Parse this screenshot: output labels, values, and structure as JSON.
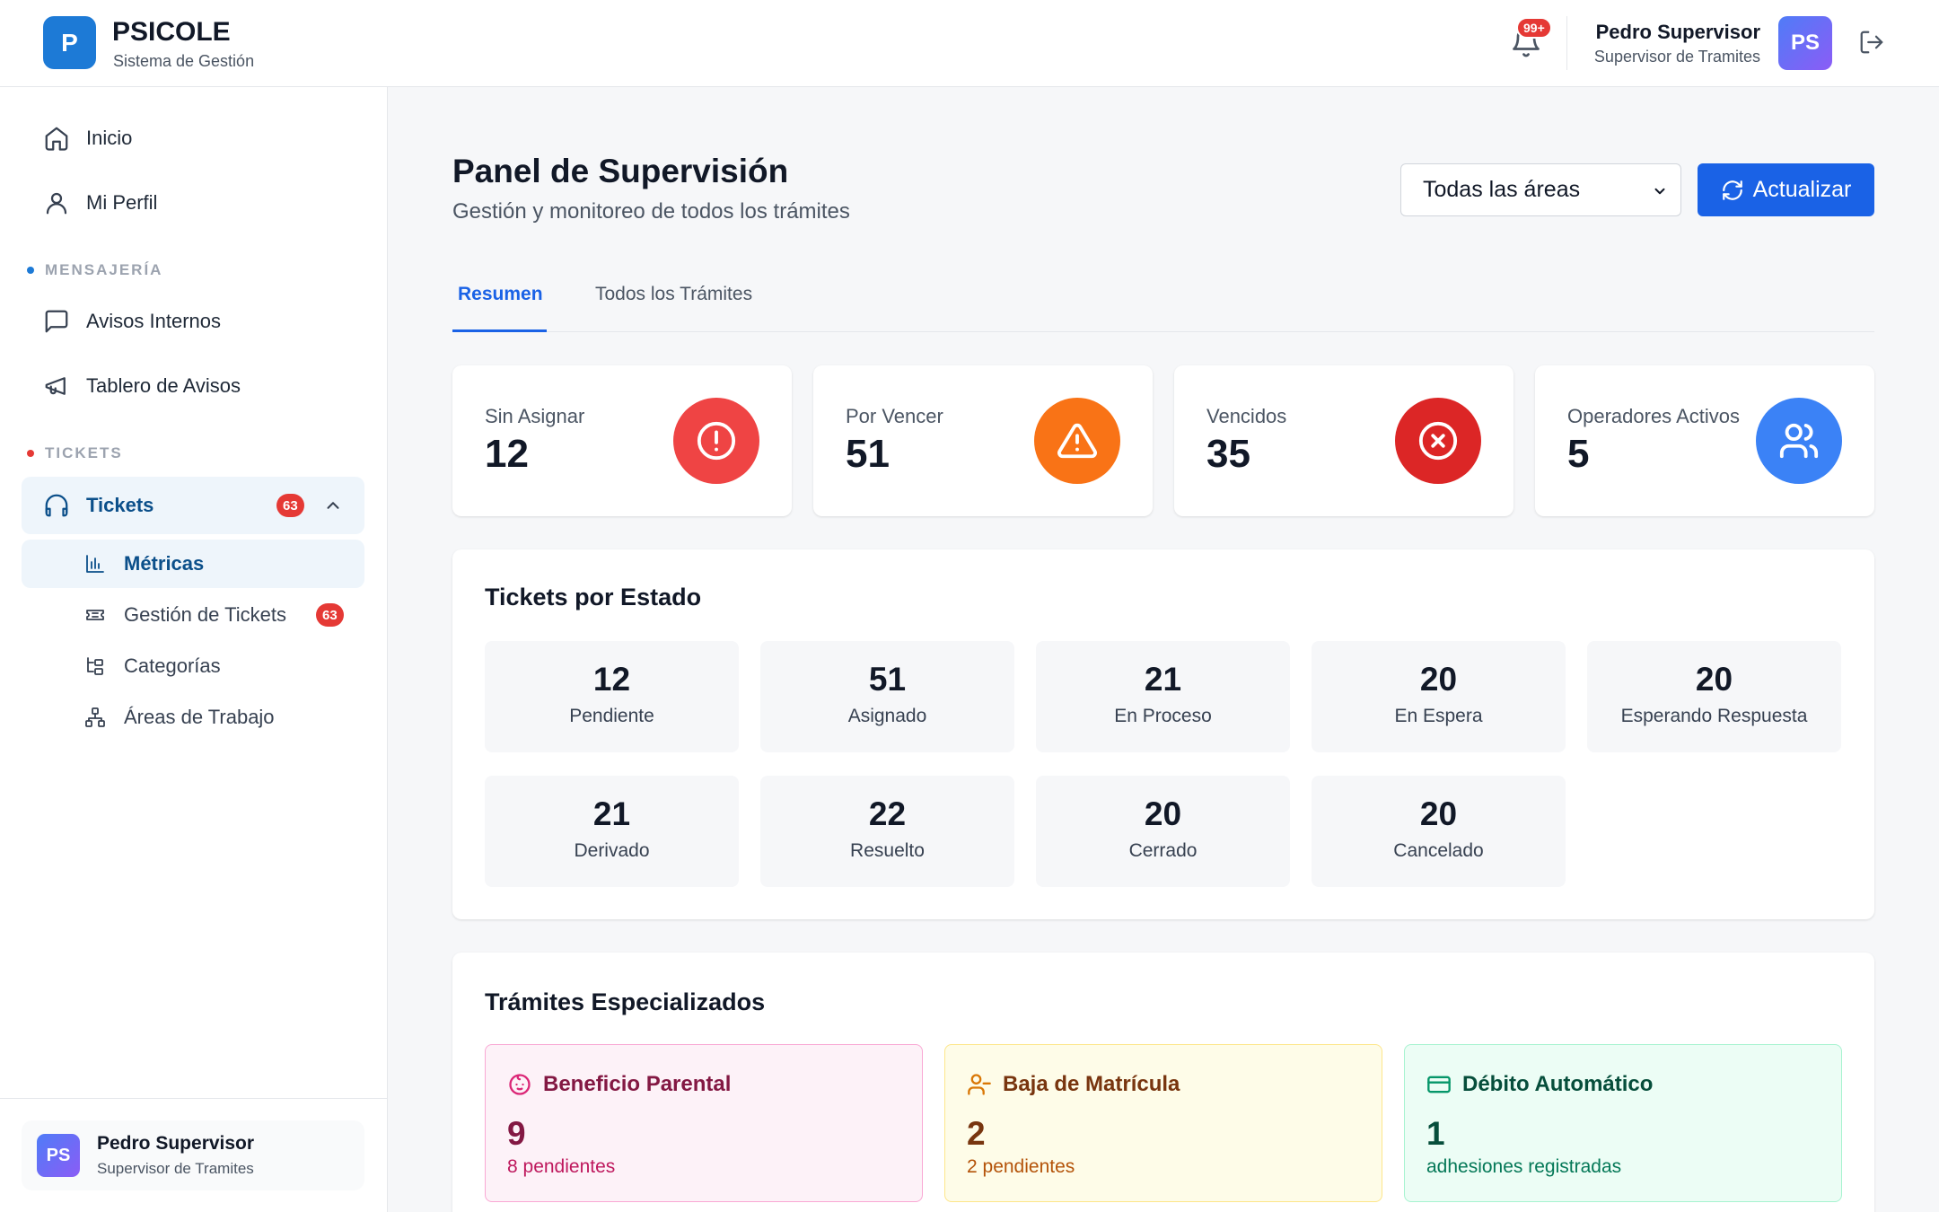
{
  "app": {
    "logo_letter": "P",
    "name": "PSICOLE",
    "subtitle": "Sistema de Gestión"
  },
  "header": {
    "notifications_badge": "99+",
    "user_name": "Pedro Supervisor",
    "user_role": "Supervisor de Tramites",
    "avatar_initials": "PS"
  },
  "sidebar": {
    "inicio": "Inicio",
    "perfil": "Mi Perfil",
    "section_mensajeria": "MENSAJERÍA",
    "avisos_internos": "Avisos Internos",
    "tablero_avisos": "Tablero de Avisos",
    "section_tickets": "TICKETS",
    "tickets": "Tickets",
    "tickets_count": "63",
    "metricas": "Métricas",
    "gestion_tickets": "Gestión de Tickets",
    "gestion_count": "63",
    "categorias": "Categorías",
    "areas_trabajo": "Áreas de Trabajo",
    "footer_name": "Pedro Supervisor",
    "footer_role": "Supervisor de Tramites",
    "footer_initials": "PS"
  },
  "main": {
    "title": "Panel de Supervisión",
    "subtitle": "Gestión y monitoreo de todos los trámites",
    "area_filter": "Todas las áreas",
    "refresh_label": "Actualizar",
    "tabs": [
      {
        "label": "Resumen"
      },
      {
        "label": "Todos los Trámites"
      }
    ],
    "stats": [
      {
        "label": "Sin Asignar",
        "value": "12",
        "color": "#ef4444",
        "icon": "alert-circle-icon"
      },
      {
        "label": "Por Vencer",
        "value": "51",
        "color": "#f97316",
        "icon": "warning-triangle-icon"
      },
      {
        "label": "Vencidos",
        "value": "35",
        "color": "#dc2626",
        "icon": "x-circle-icon"
      },
      {
        "label": "Operadores Activos",
        "value": "5",
        "color": "#3b82f6",
        "icon": "users-icon"
      }
    ],
    "status_title": "Tickets por Estado",
    "statuses": [
      {
        "count": "12",
        "label": "Pendiente"
      },
      {
        "count": "51",
        "label": "Asignado"
      },
      {
        "count": "21",
        "label": "En Proceso"
      },
      {
        "count": "20",
        "label": "En Espera"
      },
      {
        "count": "20",
        "label": "Esperando Respuesta"
      },
      {
        "count": "21",
        "label": "Derivado"
      },
      {
        "count": "22",
        "label": "Resuelto"
      },
      {
        "count": "20",
        "label": "Cerrado"
      },
      {
        "count": "20",
        "label": "Cancelado"
      }
    ],
    "special_title": "Trámites Especializados",
    "special": [
      {
        "title": "Beneficio Parental",
        "value": "9",
        "note": "8 pendientes",
        "icon": "baby-icon"
      },
      {
        "title": "Baja de Matrícula",
        "value": "2",
        "note": "2 pendientes",
        "icon": "user-minus-icon"
      },
      {
        "title": "Débito Automático",
        "value": "1",
        "note": "adhesiones registradas",
        "icon": "credit-card-icon"
      }
    ]
  }
}
